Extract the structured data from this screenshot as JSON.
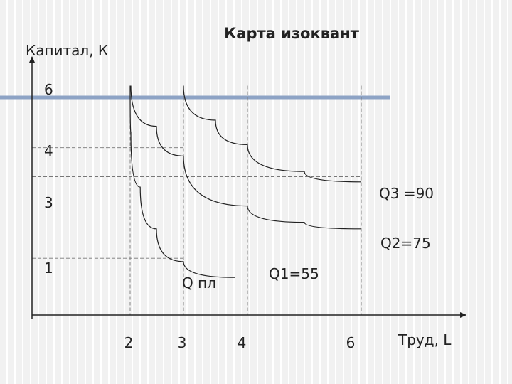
{
  "chart_data": {
    "type": "line",
    "title": "Карта изоквант",
    "ylabel": "Капитал, К",
    "xlabel": "Труд, L",
    "y_ticks": [
      {
        "value": 6,
        "label": "6"
      },
      {
        "value": 4,
        "label": "4"
      },
      {
        "value": 3,
        "label": "3"
      },
      {
        "value": 1,
        "label": "1"
      }
    ],
    "x_ticks": [
      {
        "value": 2,
        "label": "2"
      },
      {
        "value": 3,
        "label": "3"
      },
      {
        "value": 4,
        "label": "4"
      },
      {
        "value": 6,
        "label": "6"
      }
    ],
    "series": [
      {
        "name": "Q1=55",
        "points": [
          [
            1.8,
            6.1
          ],
          [
            2.0,
            4.6
          ],
          [
            2.2,
            3.3
          ],
          [
            2.5,
            2.2
          ],
          [
            3.0,
            1.2
          ],
          [
            3.8,
            0.8
          ]
        ]
      },
      {
        "name": "Q2=75",
        "points": [
          [
            2.0,
            6.1
          ],
          [
            2.5,
            4.8
          ],
          [
            3.0,
            3.9
          ],
          [
            4.0,
            2.9
          ],
          [
            5.0,
            2.4
          ],
          [
            6.0,
            2.2
          ]
        ]
      },
      {
        "name": "Q3 =90",
        "points": [
          [
            3.0,
            6.1
          ],
          [
            3.5,
            5.0
          ],
          [
            4.0,
            4.2
          ],
          [
            5.0,
            3.6
          ],
          [
            6.0,
            3.4
          ]
        ]
      }
    ],
    "annotations": [
      {
        "text": "Q пл",
        "x": 3.4,
        "y": 0.35
      },
      {
        "text": "Q1=55",
        "x": 4.9,
        "y": 0.6
      }
    ],
    "guide_lines": {
      "horizontal": [
        4.1,
        3.5,
        2.9,
        1.3
      ],
      "vertical": [
        1.8,
        3.0,
        4.0,
        6.0
      ]
    }
  }
}
